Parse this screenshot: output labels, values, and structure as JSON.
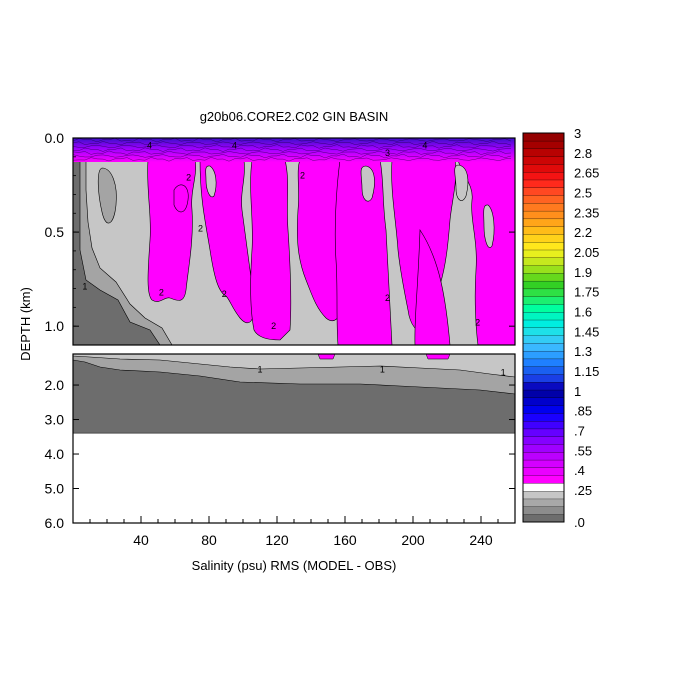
{
  "chart_data": {
    "type": "heatmap",
    "title": "g20b06.CORE2.C02 GIN BASIN",
    "xlabel": "Salinity (psu) RMS (MODEL - OBS)",
    "ylabel": "DEPTH (km)",
    "x_ticks": [
      "40",
      "80",
      "120",
      "160",
      "200",
      "240"
    ],
    "x_tick_values": [
      40,
      80,
      120,
      160,
      200,
      240
    ],
    "xlim": [
      0,
      260
    ],
    "upper_panel": {
      "ylim": [
        0.0,
        1.1
      ],
      "y_ticks": [
        "0.0",
        "0.5",
        "1.0"
      ],
      "y_tick_values": [
        0.0,
        0.5,
        1.0
      ]
    },
    "lower_panel": {
      "ylim": [
        1.1,
        6.0
      ],
      "y_ticks": [
        "2.0",
        "3.0",
        "4.0",
        "5.0",
        "6.0"
      ],
      "y_tick_values": [
        2.0,
        3.0,
        4.0,
        5.0,
        6.0
      ],
      "data_bottom_depth": 3.4
    },
    "contour_labels": [
      {
        "text": "1",
        "x": 7,
        "d": 0.79
      },
      {
        "text": "2",
        "x": 68,
        "d": 0.21
      },
      {
        "text": "2",
        "x": 75,
        "d": 0.48
      },
      {
        "text": "2",
        "x": 52,
        "d": 0.82
      },
      {
        "text": "2",
        "x": 89,
        "d": 0.83
      },
      {
        "text": "2",
        "x": 135,
        "d": 0.2
      },
      {
        "text": "2",
        "x": 185,
        "d": 0.85
      },
      {
        "text": "2",
        "x": 118,
        "d": 1.0
      },
      {
        "text": "2",
        "x": 238,
        "d": 0.98
      },
      {
        "text": "4",
        "x": 45,
        "d": 0.04
      },
      {
        "text": "4",
        "x": 95,
        "d": 0.04
      },
      {
        "text": "4",
        "x": 207,
        "d": 0.04
      },
      {
        "text": "3",
        "x": 185,
        "d": 0.08
      },
      {
        "text": "1",
        "x": 110,
        "d": 1.55
      },
      {
        "text": "1",
        "x": 182,
        "d": 1.55
      },
      {
        "text": "1",
        "x": 253,
        "d": 1.64
      }
    ],
    "colorbar": {
      "labels": [
        "3",
        "2.8",
        "2.65",
        "2.5",
        "2.35",
        "2.2",
        "2.05",
        "1.9",
        "1.75",
        "1.6",
        "1.45",
        "1.3",
        "1.15",
        "1",
        ".85",
        ".7",
        ".55",
        ".4",
        ".25",
        ".0"
      ],
      "colors": [
        "#6d6d6d",
        "#8c8c8c",
        "#a8a8a8",
        "#c6c6c6",
        "#ffffff",
        "#ff00ff",
        "#ea00ff",
        "#d400ff",
        "#bb00ff",
        "#a000ff",
        "#8500ff",
        "#6500ff",
        "#4000ff",
        "#1a00ff",
        "#0000ef",
        "#0000cc",
        "#0000a8",
        "#0a0ac0",
        "#1a3fe5",
        "#1a60f0",
        "#1f80ff",
        "#2c9eff",
        "#3ab8ff",
        "#33ccf5",
        "#1ee0e8",
        "#00eee0",
        "#00f5c0",
        "#00ff9f",
        "#1cef70",
        "#2ee044",
        "#33d024",
        "#66d81c",
        "#99e01c",
        "#c6e81e",
        "#e8ef1e",
        "#ffe71c",
        "#ffd21a",
        "#ffbc18",
        "#ffa519",
        "#ff8f1c",
        "#ff7a1f",
        "#ff6322",
        "#ff4822",
        "#ff2a1c",
        "#f41313",
        "#e00a0a",
        "#cc0505",
        "#b80202",
        "#a40000",
        "#940000"
      ]
    },
    "fills": {
      "bg": "#6d6d6d",
      "band2": "#a4a4a4",
      "band3": "#c6c6c6",
      "high": "#ff00ff",
      "surface_top": "#3a10c8",
      "surface_mid": "#a000ff"
    }
  }
}
